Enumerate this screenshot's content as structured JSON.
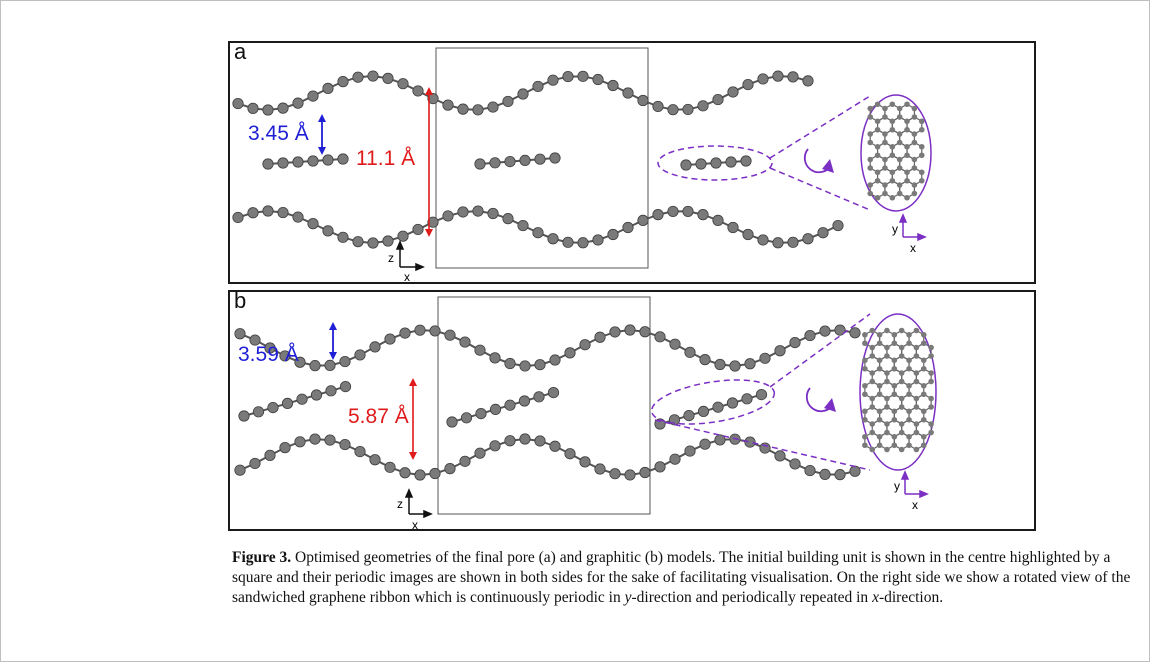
{
  "panels": [
    {
      "letter": "a",
      "interlayer_label": "3.45 Å",
      "pore_label": "11.1 Å"
    },
    {
      "letter": "b",
      "interlayer_label": "3.59 Å",
      "pore_label": "5.87 Å"
    }
  ],
  "axes": {
    "z": "z",
    "x": "x",
    "y": "y"
  },
  "colors": {
    "atom": "#7a7a7a",
    "bond": "#555555",
    "interlayer_arrow": "#1f1fd6",
    "pore_arrow": "#e01b1b",
    "highlight": "#7b2fc4"
  },
  "caption": {
    "label": "Figure 3.",
    "text": " Optimised geometries of the final pore (a) and graphitic (b) models. The initial building unit is shown in the centre highlighted by a square and their periodic images are shown in both sides for the sake of facilitating visualisation. On the right side we show a rotated view of the sandwiched graphene ribbon which is continuously periodic in y-direction and periodically repeated in x-direction."
  }
}
